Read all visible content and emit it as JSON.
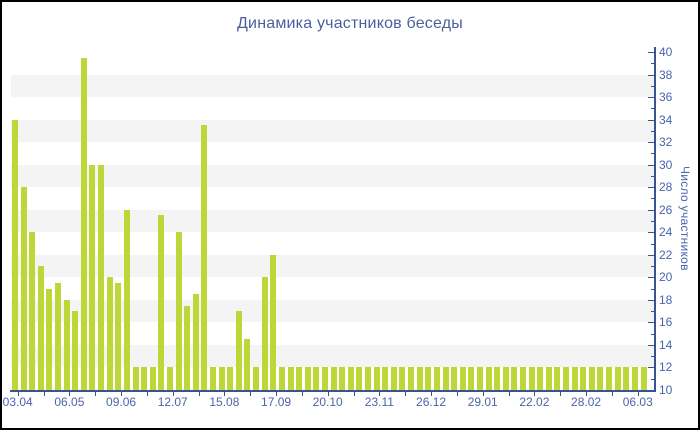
{
  "window": {
    "background": "#ffffff",
    "frame_color": "#000000"
  },
  "chart_data": {
    "type": "bar",
    "title": "Динамика участников беседы",
    "xlabel": "",
    "ylabel": "Число участников",
    "y_axis_side": "right",
    "ylim": [
      10,
      40
    ],
    "y_tick_step": 2,
    "y_minor_tick_step": 1,
    "grid": "alternating horizontal gray bands every 2 units",
    "legend": "none",
    "x_tick_labels": [
      "03.04",
      "06.05",
      "09.06",
      "12.07",
      "15.08",
      "17.09",
      "20.10",
      "23.11",
      "26.12",
      "29.01",
      "22.02",
      "28.02",
      "06.03"
    ],
    "values": [
      34,
      28,
      24,
      21,
      19,
      19.5,
      18,
      17,
      39.5,
      30,
      30,
      20,
      19.5,
      26,
      12,
      12,
      12,
      25.5,
      12,
      24,
      17.5,
      18.5,
      33.5,
      12,
      12,
      12,
      17,
      14.5,
      12,
      20,
      22,
      12,
      12,
      12,
      12,
      12,
      12,
      12,
      12,
      12,
      12,
      12,
      12,
      12,
      12,
      12,
      12,
      12,
      12,
      12,
      12,
      12,
      12,
      12,
      12,
      12,
      12,
      12,
      12,
      12,
      12,
      12,
      12,
      12,
      12,
      12,
      12,
      12,
      12,
      12,
      12,
      12,
      12,
      12
    ]
  },
  "colors": {
    "bar": "#bcd738",
    "axis_line": "#3a5493",
    "tick_label": "#4a65ad",
    "title": "#4a5f9e",
    "stripe": "#f4f4f4",
    "background": "#ffffff"
  }
}
